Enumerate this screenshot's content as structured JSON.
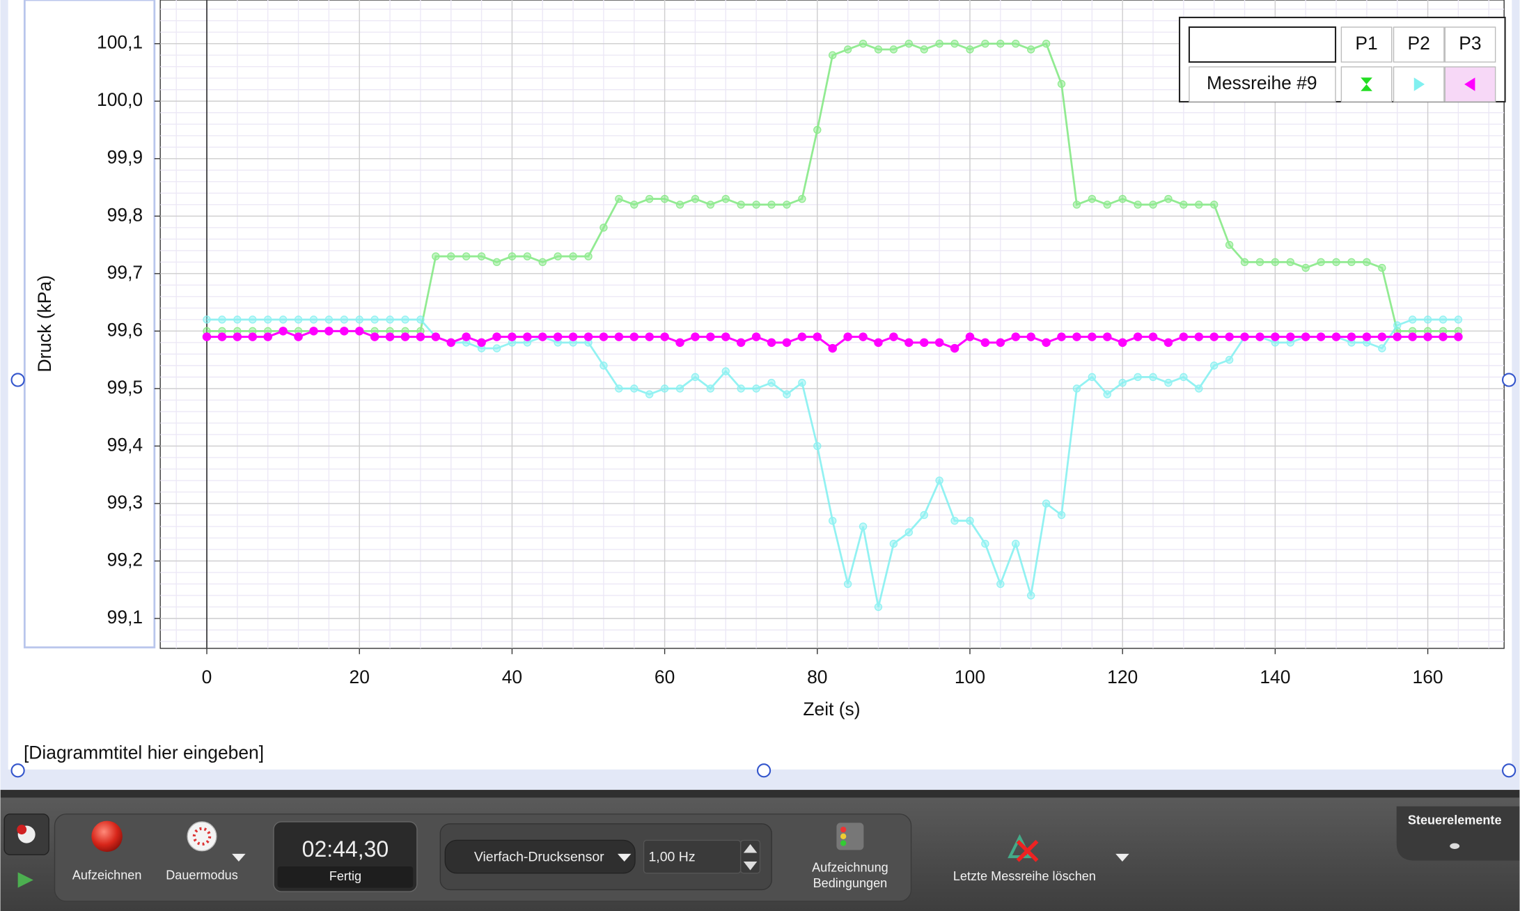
{
  "chart_data": {
    "type": "line",
    "title": "[Diagrammtitel hier eingeben]",
    "x_label": "Zeit (s)",
    "y_label": "Druck (kPa)",
    "legend_title": "Messreihe #9",
    "grid": true,
    "xlim": [
      -6.1,
      170
    ],
    "ylim": [
      99.048,
      100.176
    ],
    "xticks": [
      0,
      20,
      40,
      60,
      80,
      100,
      120,
      140,
      160
    ],
    "yticks": [
      {
        "value": 99.1,
        "label": "99,1"
      },
      {
        "value": 99.2,
        "label": "99,2"
      },
      {
        "value": 99.3,
        "label": "99,3"
      },
      {
        "value": 99.4,
        "label": "99,4"
      },
      {
        "value": 99.5,
        "label": "99,5"
      },
      {
        "value": 99.6,
        "label": "99,6"
      },
      {
        "value": 99.7,
        "label": "99,7"
      },
      {
        "value": 99.8,
        "label": "99,8"
      },
      {
        "value": 99.9,
        "label": "99,9"
      },
      {
        "value": 100.0,
        "label": "100,0"
      },
      {
        "value": 100.1,
        "label": "100,1"
      }
    ],
    "x": [
      0,
      2,
      4,
      6,
      8,
      10,
      12,
      14,
      16,
      18,
      20,
      22,
      24,
      26,
      28,
      30,
      32,
      34,
      36,
      38,
      40,
      42,
      44,
      46,
      48,
      50,
      52,
      54,
      56,
      58,
      60,
      62,
      64,
      66,
      68,
      70,
      72,
      74,
      76,
      78,
      80,
      82,
      84,
      86,
      88,
      90,
      92,
      94,
      96,
      98,
      100,
      102,
      104,
      106,
      108,
      110,
      112,
      114,
      116,
      118,
      120,
      122,
      124,
      126,
      128,
      130,
      132,
      134,
      136,
      138,
      140,
      142,
      144,
      146,
      148,
      150,
      152,
      154,
      156,
      158,
      160,
      162,
      164
    ],
    "series": [
      {
        "name": "P1",
        "color": "#7fe87f",
        "values": [
          99.6,
          99.6,
          99.6,
          99.6,
          99.6,
          99.6,
          99.6,
          99.6,
          99.6,
          99.6,
          99.6,
          99.6,
          99.6,
          99.6,
          99.6,
          99.73,
          99.73,
          99.73,
          99.73,
          99.72,
          99.73,
          99.73,
          99.72,
          99.73,
          99.73,
          99.73,
          99.78,
          99.83,
          99.82,
          99.83,
          99.83,
          99.82,
          99.83,
          99.82,
          99.83,
          99.82,
          99.82,
          99.82,
          99.82,
          99.83,
          99.95,
          100.08,
          100.09,
          100.1,
          100.09,
          100.09,
          100.1,
          100.09,
          100.1,
          100.1,
          100.09,
          100.1,
          100.1,
          100.1,
          100.09,
          100.1,
          100.03,
          99.82,
          99.83,
          99.82,
          99.83,
          99.82,
          99.82,
          99.83,
          99.82,
          99.82,
          99.82,
          99.75,
          99.72,
          99.72,
          99.72,
          99.72,
          99.71,
          99.72,
          99.72,
          99.72,
          99.72,
          99.71,
          99.6,
          99.6,
          99.6,
          99.6,
          99.6
        ]
      },
      {
        "name": "P2",
        "color": "#80f0f0",
        "values": [
          99.62,
          99.62,
          99.62,
          99.62,
          99.62,
          99.62,
          99.62,
          99.62,
          99.62,
          99.62,
          99.62,
          99.62,
          99.62,
          99.62,
          99.62,
          99.59,
          99.58,
          99.58,
          99.57,
          99.57,
          99.58,
          99.58,
          99.59,
          99.58,
          99.58,
          99.58,
          99.54,
          99.5,
          99.5,
          99.49,
          99.5,
          99.5,
          99.52,
          99.5,
          99.53,
          99.5,
          99.5,
          99.51,
          99.49,
          99.51,
          99.4,
          99.27,
          99.16,
          99.26,
          99.12,
          99.23,
          99.25,
          99.28,
          99.34,
          99.27,
          99.27,
          99.23,
          99.16,
          99.23,
          99.14,
          99.3,
          99.28,
          99.5,
          99.52,
          99.49,
          99.51,
          99.52,
          99.52,
          99.51,
          99.52,
          99.5,
          99.54,
          99.55,
          99.59,
          99.59,
          99.58,
          99.58,
          99.59,
          99.59,
          99.59,
          99.58,
          99.58,
          99.57,
          99.61,
          99.62,
          99.62,
          99.62,
          99.62
        ]
      },
      {
        "name": "P3",
        "color": "#ff00ff",
        "values": [
          99.59,
          99.59,
          99.59,
          99.59,
          99.59,
          99.6,
          99.59,
          99.6,
          99.6,
          99.6,
          99.6,
          99.59,
          99.59,
          99.59,
          99.59,
          99.59,
          99.58,
          99.59,
          99.58,
          99.59,
          99.59,
          99.59,
          99.59,
          99.59,
          99.59,
          99.59,
          99.59,
          99.59,
          99.59,
          99.59,
          99.59,
          99.58,
          99.59,
          99.59,
          99.59,
          99.58,
          99.59,
          99.58,
          99.58,
          99.59,
          99.59,
          99.57,
          99.59,
          99.59,
          99.58,
          99.59,
          99.58,
          99.58,
          99.58,
          99.57,
          99.59,
          99.58,
          99.58,
          99.59,
          99.59,
          99.58,
          99.59,
          99.59,
          99.59,
          99.59,
          99.58,
          99.59,
          99.59,
          99.58,
          99.59,
          99.59,
          99.59,
          99.59,
          99.59,
          99.59,
          99.59,
          99.59,
          99.59,
          99.59,
          99.59,
          99.59,
          99.59,
          99.59,
          99.59,
          99.59,
          99.59,
          99.59,
          99.59
        ]
      }
    ]
  },
  "toolbar": {
    "record": "Aufzeichnen",
    "mode": "Dauermodus",
    "timer": "02:44,30",
    "status": "Fertig",
    "sensor": "Vierfach-Drucksensor",
    "rate": "1,00 Hz",
    "conditions": [
      "Aufzeichnung",
      "Bedingungen"
    ],
    "delete": "Letzte Messreihe löschen",
    "controls": "Steuerelemente"
  }
}
